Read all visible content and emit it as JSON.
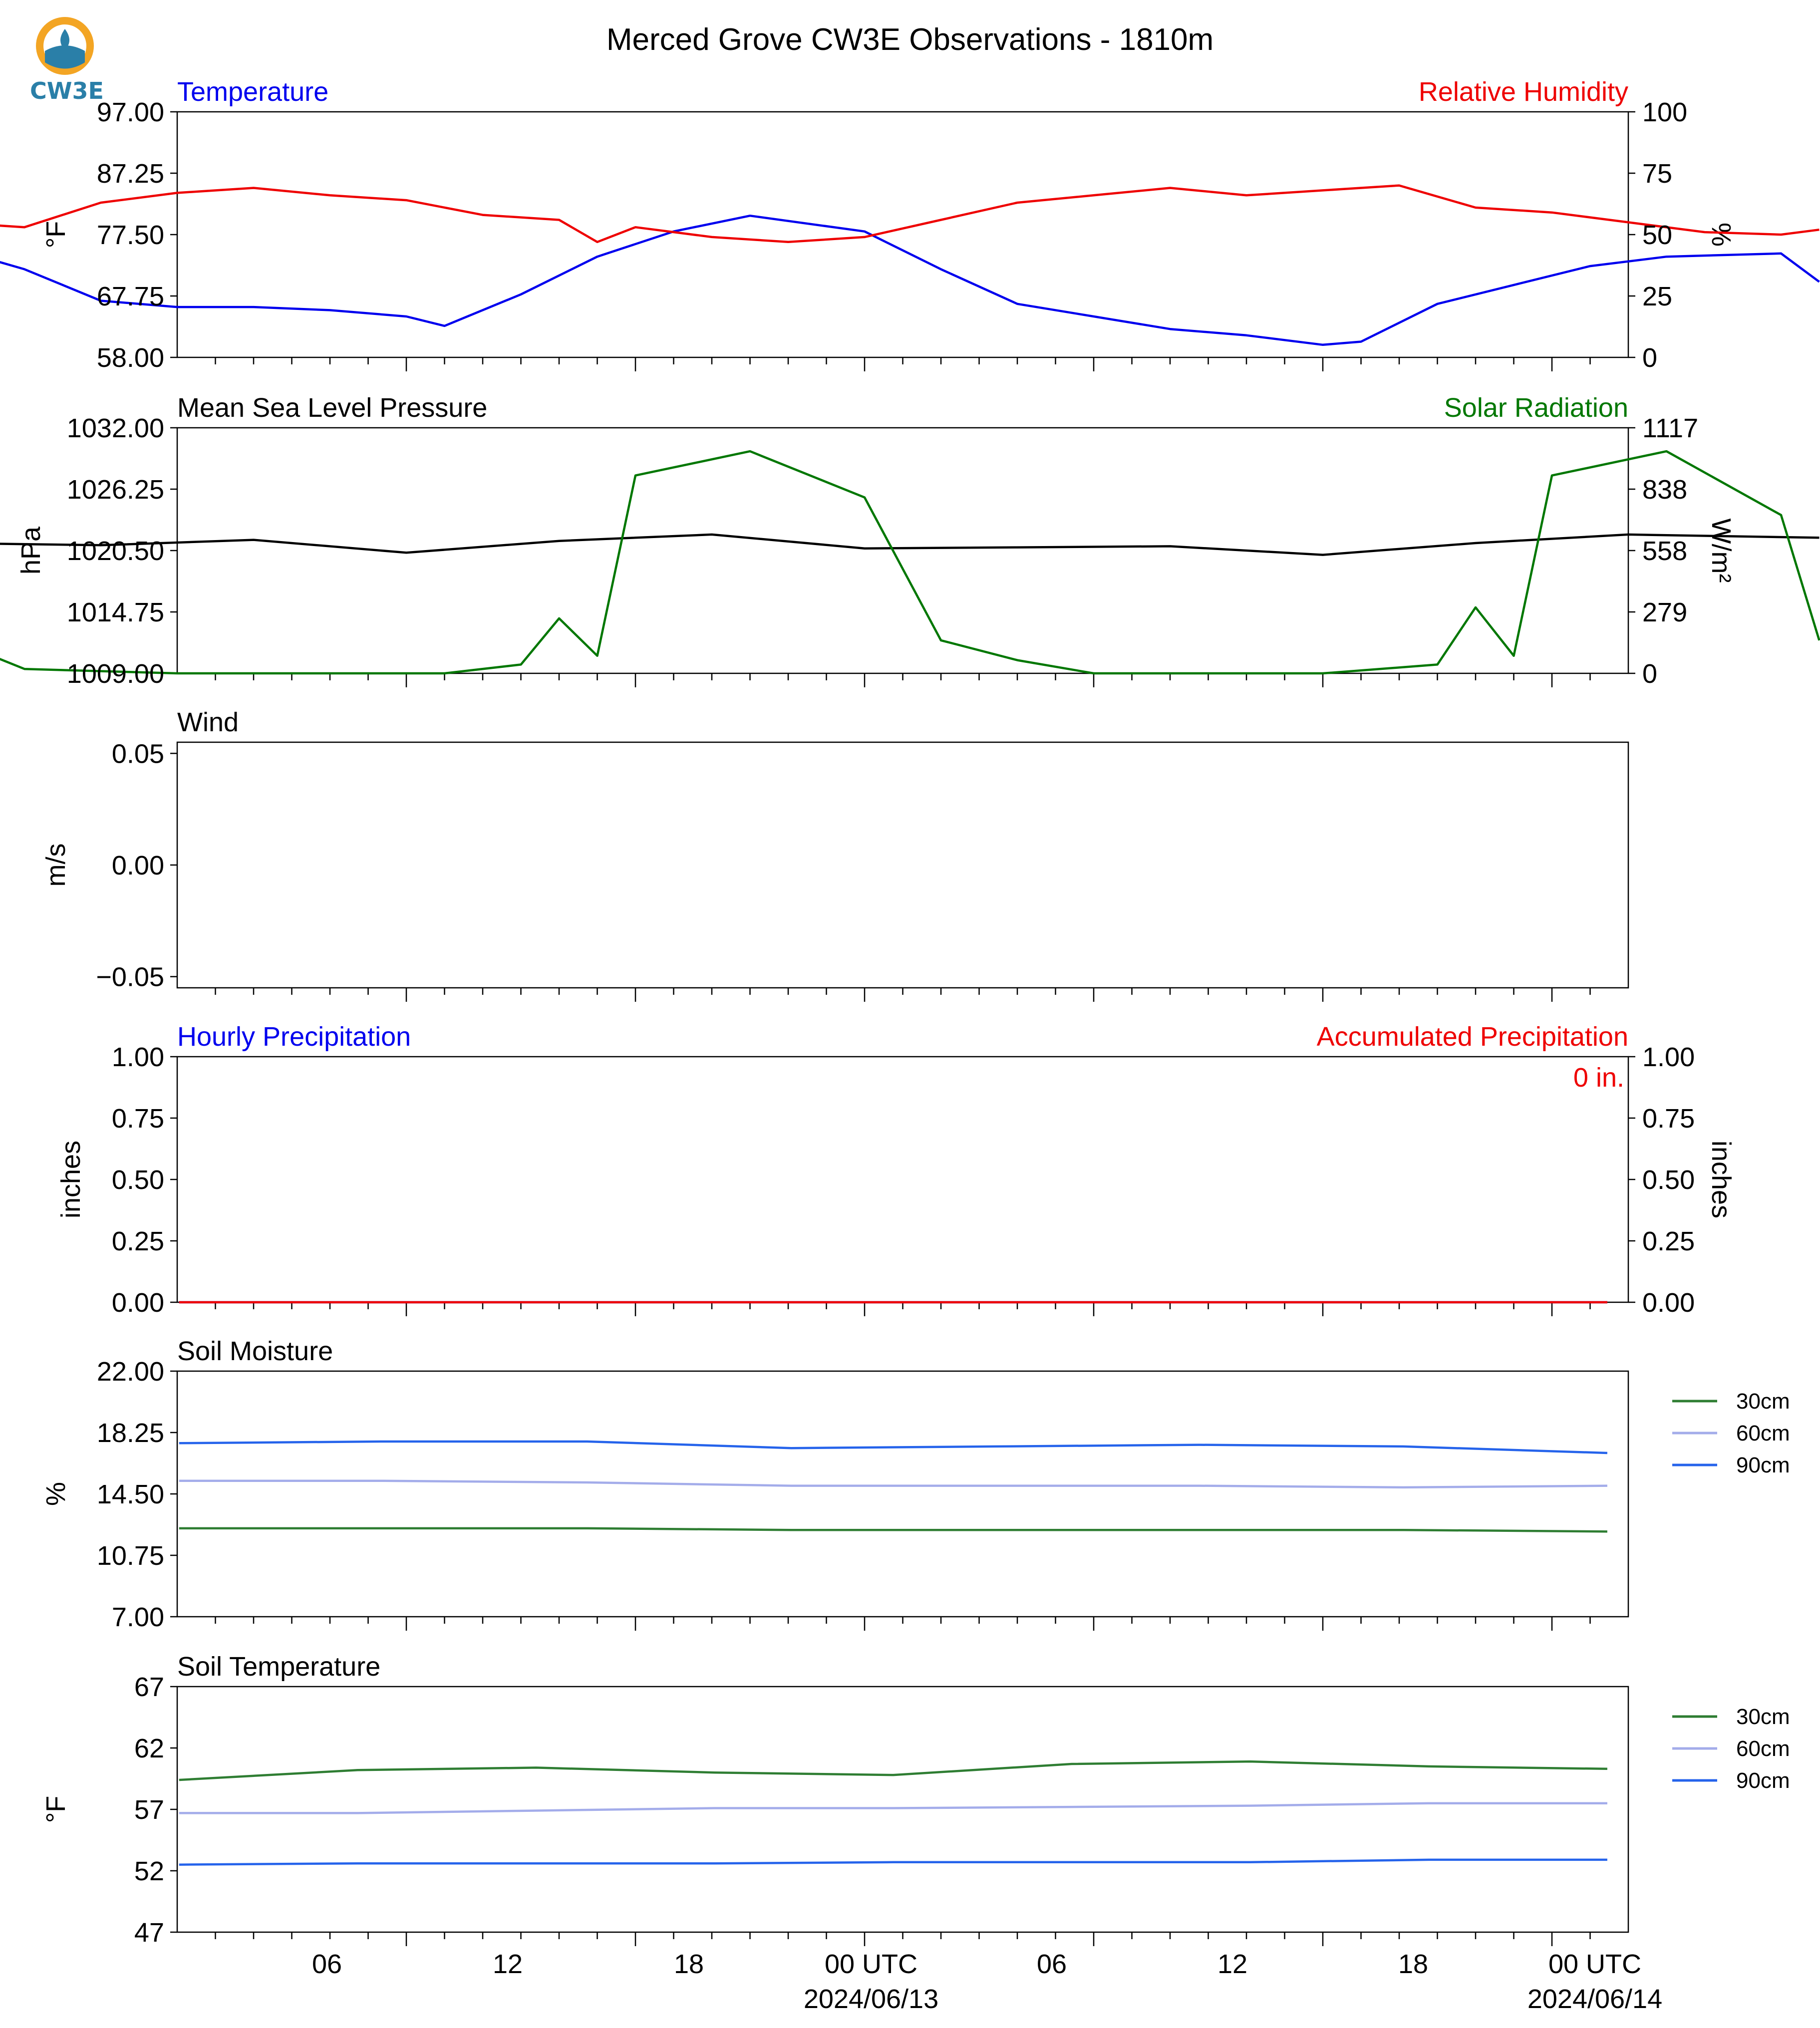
{
  "title": "Merced Grove CW3E Observations - 1810m",
  "logo": {
    "text": "CW3E",
    "icon": "cw3e-drop-logo"
  },
  "colors": {
    "temperature": "#0000ee",
    "humidity": "#ee0000",
    "pressure": "#000000",
    "solar": "#007700",
    "soil30": "#2e7d32",
    "soil60": "#a3acea",
    "soil90": "#2563eb"
  },
  "x_axis": {
    "range_hours": [
      -18,
      20
    ],
    "tick_labels": [
      "06",
      "12",
      "18",
      "00 UTC",
      "06",
      "12",
      "18",
      "00 UTC"
    ],
    "tick_hours": [
      -13,
      -7,
      -1,
      0,
      5,
      11,
      17,
      19
    ],
    "date_labels": [
      "2024/06/13",
      "2024/06/14"
    ]
  },
  "chart_data": [
    {
      "type": "line",
      "title_left": "Temperature",
      "title_right": "Relative Humidity",
      "ylabel": "°F",
      "ylabel_right": "%",
      "ylim": [
        58,
        97
      ],
      "ylim_right": [
        0,
        100
      ],
      "yticks": [
        "97.00",
        "87.25",
        "77.50",
        "67.75",
        "58.00"
      ],
      "yticks_right": [
        "100",
        "75",
        "50",
        "25",
        "0"
      ],
      "series": [
        {
          "name": "Temperature",
          "axis": "left",
          "color": "#0000ee",
          "x": [
            "2024-06-12T00",
            "2024-06-12T02",
            "2024-06-12T04",
            "2024-06-12T06",
            "2024-06-12T08",
            "2024-06-12T10",
            "2024-06-12T12",
            "2024-06-12T13",
            "2024-06-12T15",
            "2024-06-12T17",
            "2024-06-12T19",
            "2024-06-12T21",
            "2024-06-13T00",
            "2024-06-13T02",
            "2024-06-13T04",
            "2024-06-13T06",
            "2024-06-13T08",
            "2024-06-13T10",
            "2024-06-13T12",
            "2024-06-13T13",
            "2024-06-13T15",
            "2024-06-13T17",
            "2024-06-13T19",
            "2024-06-13T21",
            "2024-06-14T00",
            "2024-06-14T01"
          ],
          "values": [
            75.5,
            72,
            67,
            66,
            66,
            65.5,
            64.5,
            63,
            68,
            74,
            78,
            80.5,
            78,
            72,
            66.5,
            64.5,
            62.5,
            61.5,
            60,
            60.5,
            66.5,
            69.5,
            72.5,
            74,
            74.5,
            70
          ]
        },
        {
          "name": "Relative Humidity",
          "axis": "right",
          "color": "#ee0000",
          "x": [
            "2024-06-12T00",
            "2024-06-12T02",
            "2024-06-12T04",
            "2024-06-12T06",
            "2024-06-12T08",
            "2024-06-12T10",
            "2024-06-12T12",
            "2024-06-12T14",
            "2024-06-12T16",
            "2024-06-12T17",
            "2024-06-12T18",
            "2024-06-12T20",
            "2024-06-12T22",
            "2024-06-13T00",
            "2024-06-13T02",
            "2024-06-13T04",
            "2024-06-13T06",
            "2024-06-13T08",
            "2024-06-13T10",
            "2024-06-13T12",
            "2024-06-13T14",
            "2024-06-13T16",
            "2024-06-13T18",
            "2024-06-13T20",
            "2024-06-13T22",
            "2024-06-14T00",
            "2024-06-14T01"
          ],
          "values": [
            55,
            53,
            63,
            67,
            69,
            66,
            64,
            58,
            56,
            47,
            53,
            49,
            47,
            49,
            56,
            63,
            66,
            69,
            66,
            68,
            70,
            61,
            59,
            55,
            51,
            50,
            52
          ]
        }
      ]
    },
    {
      "type": "line",
      "title_left": "Mean Sea Level Pressure",
      "title_right": "Solar Radiation",
      "ylabel": "hPa",
      "ylabel_right": "W/m²",
      "ylim": [
        1009,
        1032
      ],
      "ylim_right": [
        0,
        1117
      ],
      "yticks": [
        "1032.00",
        "1026.25",
        "1020.50",
        "1014.75",
        "1009.00"
      ],
      "yticks_right": [
        "1117",
        "838",
        "558",
        "279",
        "0"
      ],
      "series": [
        {
          "name": "Mean Sea Level Pressure",
          "axis": "left",
          "color": "#000000",
          "x": [
            "2024-06-12T00",
            "2024-06-12T04",
            "2024-06-12T08",
            "2024-06-12T12",
            "2024-06-12T16",
            "2024-06-12T20",
            "2024-06-13T00",
            "2024-06-13T04",
            "2024-06-13T08",
            "2024-06-13T12",
            "2024-06-13T16",
            "2024-06-13T20",
            "2024-06-14T01"
          ],
          "values": [
            1021.2,
            1021.0,
            1021.5,
            1020.3,
            1021.4,
            1022.0,
            1020.7,
            1020.8,
            1020.9,
            1020.1,
            1021.2,
            1022.0,
            1021.7
          ]
        },
        {
          "name": "Solar Radiation",
          "axis": "right",
          "color": "#007700",
          "x": [
            "2024-06-12T00",
            "2024-06-12T01",
            "2024-06-12T02",
            "2024-06-12T06",
            "2024-06-12T13",
            "2024-06-12T15",
            "2024-06-12T16",
            "2024-06-12T17",
            "2024-06-12T18",
            "2024-06-12T21",
            "2024-06-13T00",
            "2024-06-13T02",
            "2024-06-13T04",
            "2024-06-13T06",
            "2024-06-13T12",
            "2024-06-13T15",
            "2024-06-13T16",
            "2024-06-13T17",
            "2024-06-13T18",
            "2024-06-13T21",
            "2024-06-14T00",
            "2024-06-14T01"
          ],
          "values": [
            130,
            90,
            20,
            0,
            0,
            40,
            250,
            80,
            900,
            1010,
            800,
            150,
            60,
            0,
            0,
            40,
            300,
            80,
            900,
            1010,
            720,
            150
          ]
        }
      ]
    },
    {
      "type": "line",
      "title_left": "Wind",
      "ylabel": "m/s",
      "ylim": [
        -0.055,
        0.055
      ],
      "yticks": [
        "0.05",
        "0.00",
        "−0.05"
      ],
      "series": []
    },
    {
      "type": "line",
      "title_left": "Hourly Precipitation",
      "title_right": "Accumulated Precipitation",
      "annotation": "0 in.",
      "ylabel": "inches",
      "ylabel_right": "inches",
      "ylim": [
        0,
        1
      ],
      "ylim_right": [
        0,
        1
      ],
      "yticks": [
        "1.00",
        "0.75",
        "0.50",
        "0.25",
        "0.00"
      ],
      "yticks_right": [
        "1.00",
        "0.75",
        "0.50",
        "0.25",
        "0.00"
      ],
      "series": [
        {
          "axis": "left",
          "color": "#0000ee",
          "values": [
            0,
            0
          ]
        },
        {
          "axis": "right",
          "color": "#ee0000",
          "values": [
            0,
            0
          ]
        }
      ]
    },
    {
      "type": "line",
      "title_left": "Soil Moisture",
      "ylabel": "%",
      "ylim": [
        7,
        22
      ],
      "yticks": [
        "22.00",
        "18.25",
        "14.50",
        "10.75",
        "7.00"
      ],
      "legend": [
        "30cm",
        "60cm",
        "90cm"
      ],
      "legend_position": "right",
      "series": [
        {
          "name": "30cm",
          "color": "#2e7d32",
          "values": [
            12.4,
            12.4,
            12.4,
            12.3,
            12.3,
            12.3,
            12.3,
            12.2
          ]
        },
        {
          "name": "60cm",
          "color": "#a3acea",
          "values": [
            15.3,
            15.3,
            15.2,
            15.0,
            15.0,
            15.0,
            14.9,
            15.0
          ]
        },
        {
          "name": "90cm",
          "color": "#2563eb",
          "values": [
            17.6,
            17.7,
            17.7,
            17.3,
            17.4,
            17.5,
            17.4,
            17.0
          ]
        }
      ]
    },
    {
      "type": "line",
      "title_left": "Soil Temperature",
      "ylabel": "°F",
      "ylim": [
        47,
        67
      ],
      "yticks": [
        "67",
        "62",
        "57",
        "52",
        "47"
      ],
      "legend": [
        "30cm",
        "60cm",
        "90cm"
      ],
      "legend_position": "right",
      "series": [
        {
          "name": "30cm",
          "color": "#2e7d32",
          "values": [
            59.4,
            60.2,
            60.4,
            60.0,
            59.8,
            60.7,
            60.9,
            60.5,
            60.3
          ]
        },
        {
          "name": "60cm",
          "color": "#a3acea",
          "values": [
            56.7,
            56.7,
            56.9,
            57.1,
            57.1,
            57.2,
            57.3,
            57.5,
            57.5
          ]
        },
        {
          "name": "90cm",
          "color": "#2563eb",
          "values": [
            52.5,
            52.6,
            52.6,
            52.6,
            52.7,
            52.7,
            52.7,
            52.9,
            52.9
          ]
        }
      ]
    }
  ]
}
